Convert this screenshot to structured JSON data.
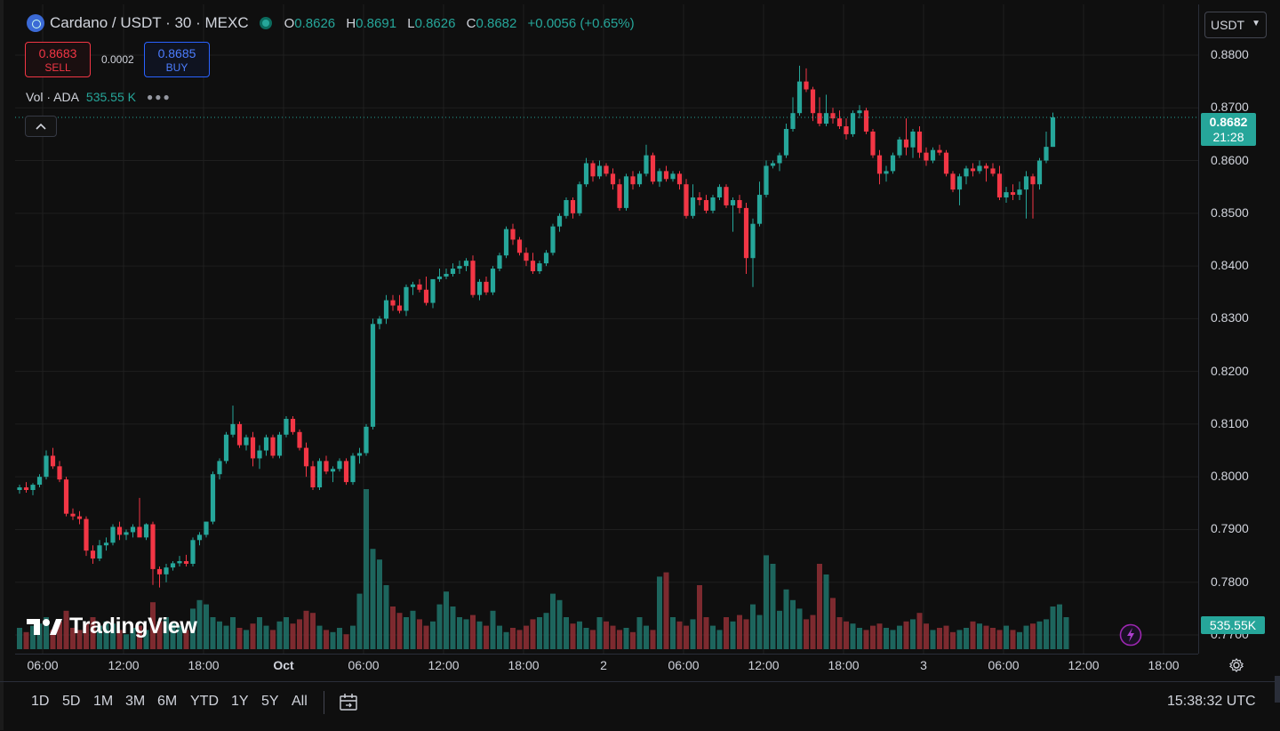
{
  "header": {
    "symbol_title": "Cardano / USDT · 30 · MEXC",
    "ohlc": {
      "o_key": "O",
      "o_val": "0.8626",
      "h_key": "H",
      "h_val": "0.8691",
      "l_key": "L",
      "l_val": "0.8626",
      "c_key": "C",
      "c_val": "0.8682",
      "change": "+0.0056 (+0.65%)"
    },
    "sell_price": "0.8683",
    "sell_label": "SELL",
    "spread": "0.0002",
    "buy_price": "0.8685",
    "buy_label": "BUY",
    "volume_label": "Vol · ADA",
    "volume_value": "535.55 K",
    "collapse_icon": "chevron-up-icon",
    "currency": "USDT"
  },
  "price_scale": {
    "labels": [
      "0.8800",
      "0.8700",
      "0.8600",
      "0.8500",
      "0.8400",
      "0.8300",
      "0.8200",
      "0.8100",
      "0.8000",
      "0.7900",
      "0.7800",
      "0.7700"
    ],
    "last_price": "0.8682",
    "countdown": "21:28",
    "volume_badge": "535.55K"
  },
  "time_axis": {
    "labels": [
      {
        "text": "06:00",
        "bold": false
      },
      {
        "text": "12:00",
        "bold": false
      },
      {
        "text": "18:00",
        "bold": false
      },
      {
        "text": "Oct",
        "bold": true
      },
      {
        "text": "06:00",
        "bold": false
      },
      {
        "text": "12:00",
        "bold": false
      },
      {
        "text": "18:00",
        "bold": false
      },
      {
        "text": "2",
        "bold": false
      },
      {
        "text": "06:00",
        "bold": false
      },
      {
        "text": "12:00",
        "bold": false
      },
      {
        "text": "18:00",
        "bold": false
      },
      {
        "text": "3",
        "bold": false
      },
      {
        "text": "06:00",
        "bold": false
      },
      {
        "text": "12:00",
        "bold": false
      },
      {
        "text": "18:00",
        "bold": false
      }
    ]
  },
  "toolbar": {
    "ranges": [
      "1D",
      "5D",
      "1M",
      "3M",
      "6M",
      "YTD",
      "1Y",
      "5Y",
      "All"
    ],
    "clock": "15:38:32 UTC",
    "calendar_icon": "calendar-icon",
    "settings_icon": "gear-icon"
  },
  "branding": {
    "logo_text": "TradingView"
  },
  "colors": {
    "up": "#26a69a",
    "down": "#f23645",
    "background": "#0f0f0f",
    "grid": "#1f1f1f"
  },
  "chart_data": {
    "type": "candlestick",
    "interval": "30",
    "ylim": [
      0.77,
      0.88
    ],
    "grid": true,
    "candles_ohlc": [
      [
        0.7975,
        0.7985,
        0.7968,
        0.798
      ],
      [
        0.798,
        0.799,
        0.797,
        0.7975
      ],
      [
        0.7975,
        0.7988,
        0.7965,
        0.7985
      ],
      [
        0.7985,
        0.8005,
        0.798,
        0.8
      ],
      [
        0.8,
        0.805,
        0.7995,
        0.804
      ],
      [
        0.804,
        0.8055,
        0.8015,
        0.802
      ],
      [
        0.802,
        0.803,
        0.799,
        0.7995
      ],
      [
        0.7995,
        0.8,
        0.7925,
        0.793
      ],
      [
        0.793,
        0.794,
        0.7918,
        0.7925
      ],
      [
        0.7925,
        0.7935,
        0.791,
        0.792
      ],
      [
        0.792,
        0.7925,
        0.785,
        0.786
      ],
      [
        0.786,
        0.787,
        0.7835,
        0.7845
      ],
      [
        0.7845,
        0.788,
        0.784,
        0.787
      ],
      [
        0.787,
        0.7885,
        0.786,
        0.7875
      ],
      [
        0.7875,
        0.791,
        0.787,
        0.7905
      ],
      [
        0.7905,
        0.7915,
        0.788,
        0.789
      ],
      [
        0.789,
        0.79,
        0.788,
        0.7895
      ],
      [
        0.7895,
        0.791,
        0.7885,
        0.7905
      ],
      [
        0.7905,
        0.796,
        0.7895,
        0.7885
      ],
      [
        0.7885,
        0.7912,
        0.788,
        0.791
      ],
      [
        0.791,
        0.7915,
        0.7795,
        0.7825
      ],
      [
        0.7825,
        0.783,
        0.779,
        0.7815
      ],
      [
        0.7815,
        0.7835,
        0.78,
        0.7828
      ],
      [
        0.7828,
        0.784,
        0.7822,
        0.7836
      ],
      [
        0.7836,
        0.785,
        0.783,
        0.784
      ],
      [
        0.784,
        0.7852,
        0.783,
        0.7835
      ],
      [
        0.7835,
        0.7885,
        0.783,
        0.788
      ],
      [
        0.788,
        0.7895,
        0.787,
        0.789
      ],
      [
        0.789,
        0.7915,
        0.7885,
        0.7915
      ],
      [
        0.7915,
        0.801,
        0.791,
        0.8005
      ],
      [
        0.8005,
        0.8035,
        0.7995,
        0.803
      ],
      [
        0.803,
        0.8085,
        0.8025,
        0.808
      ],
      [
        0.808,
        0.8135,
        0.8075,
        0.81
      ],
      [
        0.81,
        0.8105,
        0.8055,
        0.806
      ],
      [
        0.806,
        0.808,
        0.805,
        0.8075
      ],
      [
        0.8075,
        0.8085,
        0.802,
        0.8035
      ],
      [
        0.8035,
        0.806,
        0.8015,
        0.805
      ],
      [
        0.805,
        0.808,
        0.804,
        0.8075
      ],
      [
        0.8075,
        0.808,
        0.8035,
        0.804
      ],
      [
        0.804,
        0.8085,
        0.8035,
        0.808
      ],
      [
        0.808,
        0.8115,
        0.8075,
        0.811
      ],
      [
        0.811,
        0.8115,
        0.808,
        0.8085
      ],
      [
        0.8085,
        0.809,
        0.805,
        0.8055
      ],
      [
        0.8055,
        0.8065,
        0.8,
        0.802
      ],
      [
        0.802,
        0.803,
        0.7975,
        0.798
      ],
      [
        0.798,
        0.8035,
        0.7975,
        0.803
      ],
      [
        0.803,
        0.804,
        0.8005,
        0.801
      ],
      [
        0.801,
        0.802,
        0.799,
        0.8015
      ],
      [
        0.8015,
        0.8035,
        0.801,
        0.803
      ],
      [
        0.803,
        0.8035,
        0.7985,
        0.799
      ],
      [
        0.799,
        0.8045,
        0.7985,
        0.804
      ],
      [
        0.804,
        0.8055,
        0.8025,
        0.8045
      ],
      [
        0.8045,
        0.81,
        0.804,
        0.8095
      ],
      [
        0.8095,
        0.83,
        0.809,
        0.829
      ],
      [
        0.829,
        0.8305,
        0.828,
        0.83
      ],
      [
        0.83,
        0.8345,
        0.829,
        0.8335
      ],
      [
        0.8335,
        0.8345,
        0.8315,
        0.8325
      ],
      [
        0.8325,
        0.8345,
        0.831,
        0.8315
      ],
      [
        0.8315,
        0.8365,
        0.8305,
        0.836
      ],
      [
        0.836,
        0.837,
        0.8345,
        0.8365
      ],
      [
        0.8365,
        0.8375,
        0.835,
        0.8355
      ],
      [
        0.8355,
        0.838,
        0.8325,
        0.833
      ],
      [
        0.833,
        0.8345,
        0.832,
        0.8375
      ],
      [
        0.8375,
        0.8395,
        0.837,
        0.838
      ],
      [
        0.838,
        0.8395,
        0.8375,
        0.8385
      ],
      [
        0.8385,
        0.8405,
        0.838,
        0.8395
      ],
      [
        0.8395,
        0.841,
        0.8385,
        0.84
      ],
      [
        0.84,
        0.8415,
        0.839,
        0.841
      ],
      [
        0.841,
        0.842,
        0.834,
        0.8345
      ],
      [
        0.8345,
        0.8375,
        0.8335,
        0.837
      ],
      [
        0.837,
        0.838,
        0.8345,
        0.835
      ],
      [
        0.835,
        0.84,
        0.8345,
        0.8395
      ],
      [
        0.8395,
        0.8425,
        0.839,
        0.842
      ],
      [
        0.842,
        0.8475,
        0.8415,
        0.847
      ],
      [
        0.847,
        0.848,
        0.844,
        0.845
      ],
      [
        0.845,
        0.8455,
        0.842,
        0.8425
      ],
      [
        0.8425,
        0.8435,
        0.84,
        0.841
      ],
      [
        0.841,
        0.8425,
        0.8385,
        0.839
      ],
      [
        0.839,
        0.841,
        0.8385,
        0.8405
      ],
      [
        0.8405,
        0.843,
        0.84,
        0.8425
      ],
      [
        0.8425,
        0.848,
        0.842,
        0.8475
      ],
      [
        0.8475,
        0.85,
        0.8465,
        0.8495
      ],
      [
        0.8495,
        0.853,
        0.849,
        0.8525
      ],
      [
        0.8525,
        0.853,
        0.849,
        0.85
      ],
      [
        0.85,
        0.856,
        0.8495,
        0.8555
      ],
      [
        0.8555,
        0.8605,
        0.855,
        0.8595
      ],
      [
        0.8595,
        0.86,
        0.856,
        0.857
      ],
      [
        0.857,
        0.86,
        0.8565,
        0.859
      ],
      [
        0.859,
        0.8595,
        0.857,
        0.8575
      ],
      [
        0.8575,
        0.8585,
        0.8545,
        0.8555
      ],
      [
        0.8555,
        0.8565,
        0.8505,
        0.851
      ],
      [
        0.851,
        0.8575,
        0.8505,
        0.857
      ],
      [
        0.857,
        0.858,
        0.8545,
        0.8555
      ],
      [
        0.8555,
        0.858,
        0.855,
        0.8575
      ],
      [
        0.8575,
        0.863,
        0.857,
        0.861
      ],
      [
        0.861,
        0.8615,
        0.8555,
        0.856
      ],
      [
        0.856,
        0.8585,
        0.855,
        0.858
      ],
      [
        0.858,
        0.859,
        0.856,
        0.8565
      ],
      [
        0.8565,
        0.858,
        0.856,
        0.8575
      ],
      [
        0.8575,
        0.858,
        0.8545,
        0.8555
      ],
      [
        0.8555,
        0.8565,
        0.849,
        0.8495
      ],
      [
        0.8495,
        0.8555,
        0.849,
        0.853
      ],
      [
        0.853,
        0.854,
        0.8515,
        0.8525
      ],
      [
        0.8525,
        0.8535,
        0.85,
        0.8505
      ],
      [
        0.8505,
        0.8535,
        0.85,
        0.853
      ],
      [
        0.853,
        0.8555,
        0.8525,
        0.855
      ],
      [
        0.855,
        0.8555,
        0.851,
        0.8515
      ],
      [
        0.8515,
        0.853,
        0.8465,
        0.8525
      ],
      [
        0.8525,
        0.8535,
        0.85,
        0.851
      ],
      [
        0.851,
        0.852,
        0.8385,
        0.8415
      ],
      [
        0.8415,
        0.849,
        0.836,
        0.848
      ],
      [
        0.848,
        0.856,
        0.8475,
        0.8535
      ],
      [
        0.8535,
        0.86,
        0.853,
        0.859
      ],
      [
        0.859,
        0.86,
        0.8585,
        0.8595
      ],
      [
        0.8595,
        0.8615,
        0.858,
        0.861
      ],
      [
        0.861,
        0.867,
        0.8605,
        0.866
      ],
      [
        0.866,
        0.872,
        0.8655,
        0.869
      ],
      [
        0.869,
        0.878,
        0.8685,
        0.875
      ],
      [
        0.875,
        0.8775,
        0.873,
        0.8735
      ],
      [
        0.8735,
        0.874,
        0.8675,
        0.869
      ],
      [
        0.869,
        0.872,
        0.8665,
        0.867
      ],
      [
        0.867,
        0.8725,
        0.8665,
        0.869
      ],
      [
        0.869,
        0.87,
        0.867,
        0.868
      ],
      [
        0.868,
        0.8695,
        0.866,
        0.8665
      ],
      [
        0.8665,
        0.868,
        0.864,
        0.865
      ],
      [
        0.865,
        0.8695,
        0.8645,
        0.869
      ],
      [
        0.869,
        0.8705,
        0.868,
        0.8695
      ],
      [
        0.8695,
        0.87,
        0.865,
        0.8655
      ],
      [
        0.8655,
        0.866,
        0.8605,
        0.861
      ],
      [
        0.861,
        0.862,
        0.8555,
        0.8575
      ],
      [
        0.8575,
        0.859,
        0.856,
        0.858
      ],
      [
        0.858,
        0.8615,
        0.8575,
        0.861
      ],
      [
        0.861,
        0.8645,
        0.8605,
        0.864
      ],
      [
        0.864,
        0.868,
        0.861,
        0.8625
      ],
      [
        0.8625,
        0.866,
        0.8605,
        0.8655
      ],
      [
        0.8655,
        0.8665,
        0.8605,
        0.8615
      ],
      [
        0.8615,
        0.8625,
        0.859,
        0.86
      ],
      [
        0.86,
        0.8625,
        0.8595,
        0.862
      ],
      [
        0.862,
        0.863,
        0.861,
        0.8615
      ],
      [
        0.8615,
        0.862,
        0.857,
        0.8575
      ],
      [
        0.8575,
        0.858,
        0.854,
        0.8545
      ],
      [
        0.8545,
        0.8575,
        0.8515,
        0.857
      ],
      [
        0.857,
        0.859,
        0.8555,
        0.8585
      ],
      [
        0.8585,
        0.8595,
        0.857,
        0.858
      ],
      [
        0.858,
        0.86,
        0.8575,
        0.859
      ],
      [
        0.859,
        0.8595,
        0.856,
        0.8585
      ],
      [
        0.8585,
        0.8595,
        0.857,
        0.8575
      ],
      [
        0.8575,
        0.859,
        0.8525,
        0.853
      ],
      [
        0.853,
        0.855,
        0.852,
        0.854
      ],
      [
        0.854,
        0.8555,
        0.8525,
        0.8535
      ],
      [
        0.8535,
        0.856,
        0.8525,
        0.8545
      ],
      [
        0.8545,
        0.858,
        0.849,
        0.857
      ],
      [
        0.857,
        0.8575,
        0.849,
        0.8555
      ],
      [
        0.8555,
        0.8605,
        0.8545,
        0.86
      ],
      [
        0.86,
        0.8655,
        0.8595,
        0.8626
      ],
      [
        0.8626,
        0.8691,
        0.8626,
        0.8682
      ]
    ],
    "volume": [
      20,
      16,
      22,
      24,
      30,
      18,
      26,
      36,
      20,
      18,
      24,
      30,
      22,
      26,
      24,
      18,
      14,
      20,
      22,
      18,
      44,
      26,
      30,
      24,
      22,
      18,
      38,
      46,
      42,
      30,
      26,
      22,
      30,
      20,
      18,
      24,
      30,
      22,
      18,
      26,
      30,
      24,
      28,
      36,
      34,
      22,
      18,
      16,
      20,
      14,
      22,
      52,
      150,
      94,
      84,
      60,
      40,
      34,
      30,
      36,
      28,
      22,
      26,
      42,
      54,
      40,
      30,
      28,
      32,
      26,
      22,
      36,
      22,
      16,
      20,
      18,
      22,
      28,
      30,
      34,
      52,
      46,
      30,
      24,
      26,
      20,
      18,
      30,
      26,
      22,
      18,
      20,
      16,
      30,
      22,
      18,
      68,
      72,
      30,
      26,
      22,
      28,
      60,
      30,
      22,
      18,
      30,
      26,
      32,
      28,
      42,
      32,
      88,
      80,
      36,
      56,
      46,
      38,
      28,
      32,
      80,
      70,
      48,
      30,
      26,
      24,
      20,
      18,
      22,
      24,
      20,
      18,
      22,
      26,
      28,
      34,
      24,
      18,
      20,
      22,
      16,
      18,
      20,
      26,
      24,
      22,
      20,
      18,
      22,
      18,
      16,
      22,
      24,
      26,
      28,
      40,
      42,
      30
    ]
  }
}
